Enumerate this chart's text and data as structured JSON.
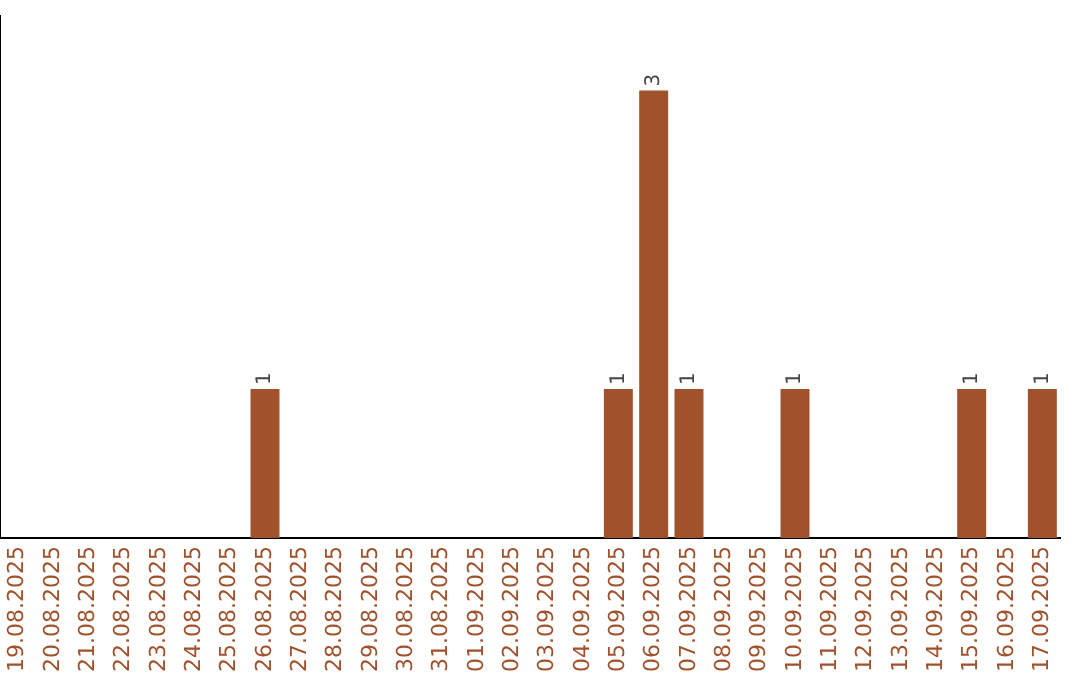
{
  "chart_data": {
    "type": "bar",
    "categories": [
      "19.08.2025",
      "20.08.2025",
      "21.08.2025",
      "22.08.2025",
      "23.08.2025",
      "24.08.2025",
      "25.08.2025",
      "26.08.2025",
      "27.08.2025",
      "28.08.2025",
      "29.08.2025",
      "30.08.2025",
      "31.08.2025",
      "01.09.2025",
      "02.09.2025",
      "03.09.2025",
      "04.09.2025",
      "05.09.2025",
      "06.09.2025",
      "07.09.2025",
      "08.09.2025",
      "09.09.2025",
      "10.09.2025",
      "11.09.2025",
      "12.09.2025",
      "13.09.2025",
      "14.09.2025",
      "15.09.2025",
      "16.09.2025",
      "17.09.2025"
    ],
    "values": [
      0,
      0,
      0,
      0,
      0,
      0,
      0,
      1,
      0,
      0,
      0,
      0,
      0,
      0,
      0,
      0,
      0,
      1,
      3,
      1,
      0,
      0,
      1,
      0,
      0,
      0,
      0,
      1,
      0,
      1
    ],
    "value_labels": [
      null,
      null,
      null,
      null,
      null,
      null,
      null,
      "1",
      null,
      null,
      null,
      null,
      null,
      null,
      null,
      null,
      null,
      "1",
      "3",
      "1",
      null,
      null,
      "1",
      null,
      null,
      null,
      null,
      "1",
      null,
      "1"
    ],
    "color": "#a0522d",
    "grid": false,
    "legend": false
  }
}
